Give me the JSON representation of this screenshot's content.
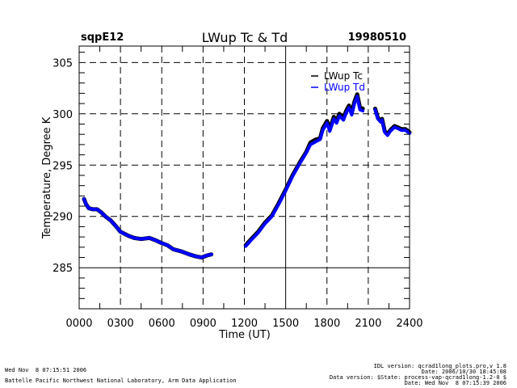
{
  "header": {
    "site": "sqpE12",
    "title": "LWup Tc & Td",
    "date": "19980510"
  },
  "footer": {
    "run_time": "Wed Nov  8 07:15:51 2006",
    "institution": "Battelle Pacific Northwest National Laboratory, Arm Data Application",
    "idl_version": "IDL version: qcrad1long_plots.pro,v 1.8",
    "idl_date": "Date: 2006/10/30 18:45:08",
    "data_version": "Data version: $State: process-vap-qcrad1long-1.2-0 $",
    "data_date": "Date: Wed Nov  8 07:15:39 2006"
  },
  "chart_data": {
    "type": "line",
    "title": "LWup Tc & Td",
    "xlabel": "Time (UT)",
    "ylabel": "Temperature, Degree K",
    "xlim": [
      0,
      24
    ],
    "ylim": [
      281,
      306.6
    ],
    "x_ticks": [
      0,
      3,
      6,
      9,
      12,
      15,
      18,
      21,
      24
    ],
    "x_tick_labels": [
      "0000",
      "0300",
      "0600",
      "0900",
      "1200",
      "1500",
      "1800",
      "2100",
      "2400"
    ],
    "y_ticks": [
      285,
      290,
      295,
      300,
      305
    ],
    "y_tick_labels": [
      "285",
      "290",
      "295",
      "300",
      "305"
    ],
    "grid": true,
    "legend_position": "top-right",
    "series": [
      {
        "name": "LWup Tc",
        "color": "#000000",
        "segments": [
          [
            [
              0.35,
              291.7
            ],
            [
              0.5,
              291.2
            ],
            [
              0.7,
              290.8
            ],
            [
              1.0,
              290.7
            ],
            [
              1.3,
              290.7
            ],
            [
              1.6,
              290.4
            ],
            [
              1.9,
              290.0
            ],
            [
              2.3,
              289.6
            ],
            [
              2.7,
              289.0
            ],
            [
              3.0,
              288.5
            ],
            [
              3.3,
              288.3
            ],
            [
              3.6,
              288.1
            ],
            [
              4.0,
              287.9
            ],
            [
              4.5,
              287.8
            ],
            [
              5.1,
              287.9
            ],
            [
              5.5,
              287.7
            ],
            [
              6.0,
              287.4
            ],
            [
              6.4,
              287.2
            ],
            [
              6.85,
              286.8
            ],
            [
              7.4,
              286.6
            ],
            [
              8.0,
              286.3
            ],
            [
              8.5,
              286.1
            ],
            [
              8.9,
              286.0
            ],
            [
              9.3,
              286.2
            ],
            [
              9.6,
              286.3
            ]
          ],
          [
            [
              12.1,
              287.2
            ],
            [
              12.5,
              287.8
            ],
            [
              13.0,
              288.5
            ],
            [
              13.5,
              289.4
            ],
            [
              14.0,
              290.1
            ],
            [
              14.5,
              291.3
            ],
            [
              15.0,
              292.6
            ],
            [
              15.5,
              294.0
            ],
            [
              16.0,
              295.2
            ],
            [
              16.5,
              296.3
            ],
            [
              16.8,
              297.2
            ],
            [
              17.2,
              297.5
            ],
            [
              17.5,
              297.6
            ],
            [
              17.7,
              298.6
            ],
            [
              18.0,
              299.3
            ],
            [
              18.2,
              298.5
            ],
            [
              18.5,
              299.7
            ],
            [
              18.7,
              299.3
            ],
            [
              18.9,
              300.0
            ],
            [
              19.2,
              299.6
            ],
            [
              19.4,
              300.3
            ],
            [
              19.6,
              300.8
            ],
            [
              19.8,
              300.1
            ],
            [
              20.0,
              301.2
            ],
            [
              20.2,
              301.9
            ],
            [
              20.4,
              300.6
            ],
            [
              20.6,
              300.5
            ]
          ],
          [
            [
              21.5,
              300.5
            ],
            [
              21.7,
              299.6
            ],
            [
              21.9,
              299.3
            ],
            [
              22.0,
              299.5
            ],
            [
              22.2,
              298.3
            ],
            [
              22.4,
              298.0
            ],
            [
              22.6,
              298.4
            ],
            [
              22.9,
              298.8
            ],
            [
              23.1,
              298.7
            ],
            [
              23.4,
              298.5
            ],
            [
              23.7,
              298.5
            ],
            [
              24.0,
              298.2
            ]
          ]
        ]
      },
      {
        "name": "LWup Td",
        "color": "#0000ff",
        "segments": [
          [
            [
              0.35,
              291.7
            ],
            [
              0.5,
              291.2
            ],
            [
              0.7,
              290.8
            ],
            [
              1.0,
              290.7
            ],
            [
              1.3,
              290.7
            ],
            [
              1.6,
              290.4
            ],
            [
              1.9,
              290.0
            ],
            [
              2.3,
              289.6
            ],
            [
              2.7,
              289.0
            ],
            [
              3.0,
              288.5
            ],
            [
              3.3,
              288.3
            ],
            [
              3.6,
              288.1
            ],
            [
              4.0,
              287.9
            ],
            [
              4.5,
              287.8
            ],
            [
              5.1,
              287.9
            ],
            [
              5.5,
              287.7
            ],
            [
              6.0,
              287.4
            ],
            [
              6.4,
              287.2
            ],
            [
              6.85,
              286.8
            ],
            [
              7.4,
              286.6
            ],
            [
              8.0,
              286.3
            ],
            [
              8.5,
              286.1
            ],
            [
              8.9,
              286.0
            ],
            [
              9.3,
              286.2
            ],
            [
              9.6,
              286.3
            ]
          ],
          [
            [
              12.1,
              287.1
            ],
            [
              12.5,
              287.7
            ],
            [
              13.0,
              288.4
            ],
            [
              13.5,
              289.3
            ],
            [
              14.0,
              290.0
            ],
            [
              14.5,
              291.2
            ],
            [
              15.0,
              292.5
            ],
            [
              15.5,
              293.9
            ],
            [
              16.0,
              295.1
            ],
            [
              16.5,
              296.2
            ],
            [
              16.8,
              297.0
            ],
            [
              17.2,
              297.3
            ],
            [
              17.5,
              297.5
            ],
            [
              17.7,
              298.4
            ],
            [
              18.0,
              299.1
            ],
            [
              18.2,
              298.3
            ],
            [
              18.5,
              299.5
            ],
            [
              18.7,
              299.1
            ],
            [
              18.9,
              299.8
            ],
            [
              19.2,
              299.4
            ],
            [
              19.4,
              300.1
            ],
            [
              19.6,
              300.6
            ],
            [
              19.8,
              299.9
            ],
            [
              20.0,
              301.0
            ],
            [
              20.2,
              301.7
            ],
            [
              20.4,
              300.4
            ],
            [
              20.6,
              300.3
            ]
          ],
          [
            [
              21.5,
              300.4
            ],
            [
              21.7,
              299.5
            ],
            [
              21.9,
              299.2
            ],
            [
              22.0,
              299.4
            ],
            [
              22.2,
              298.2
            ],
            [
              22.4,
              297.9
            ],
            [
              22.6,
              298.3
            ],
            [
              22.9,
              298.7
            ],
            [
              23.1,
              298.6
            ],
            [
              23.4,
              298.4
            ],
            [
              23.7,
              298.4
            ],
            [
              24.0,
              298.1
            ]
          ]
        ]
      }
    ]
  }
}
